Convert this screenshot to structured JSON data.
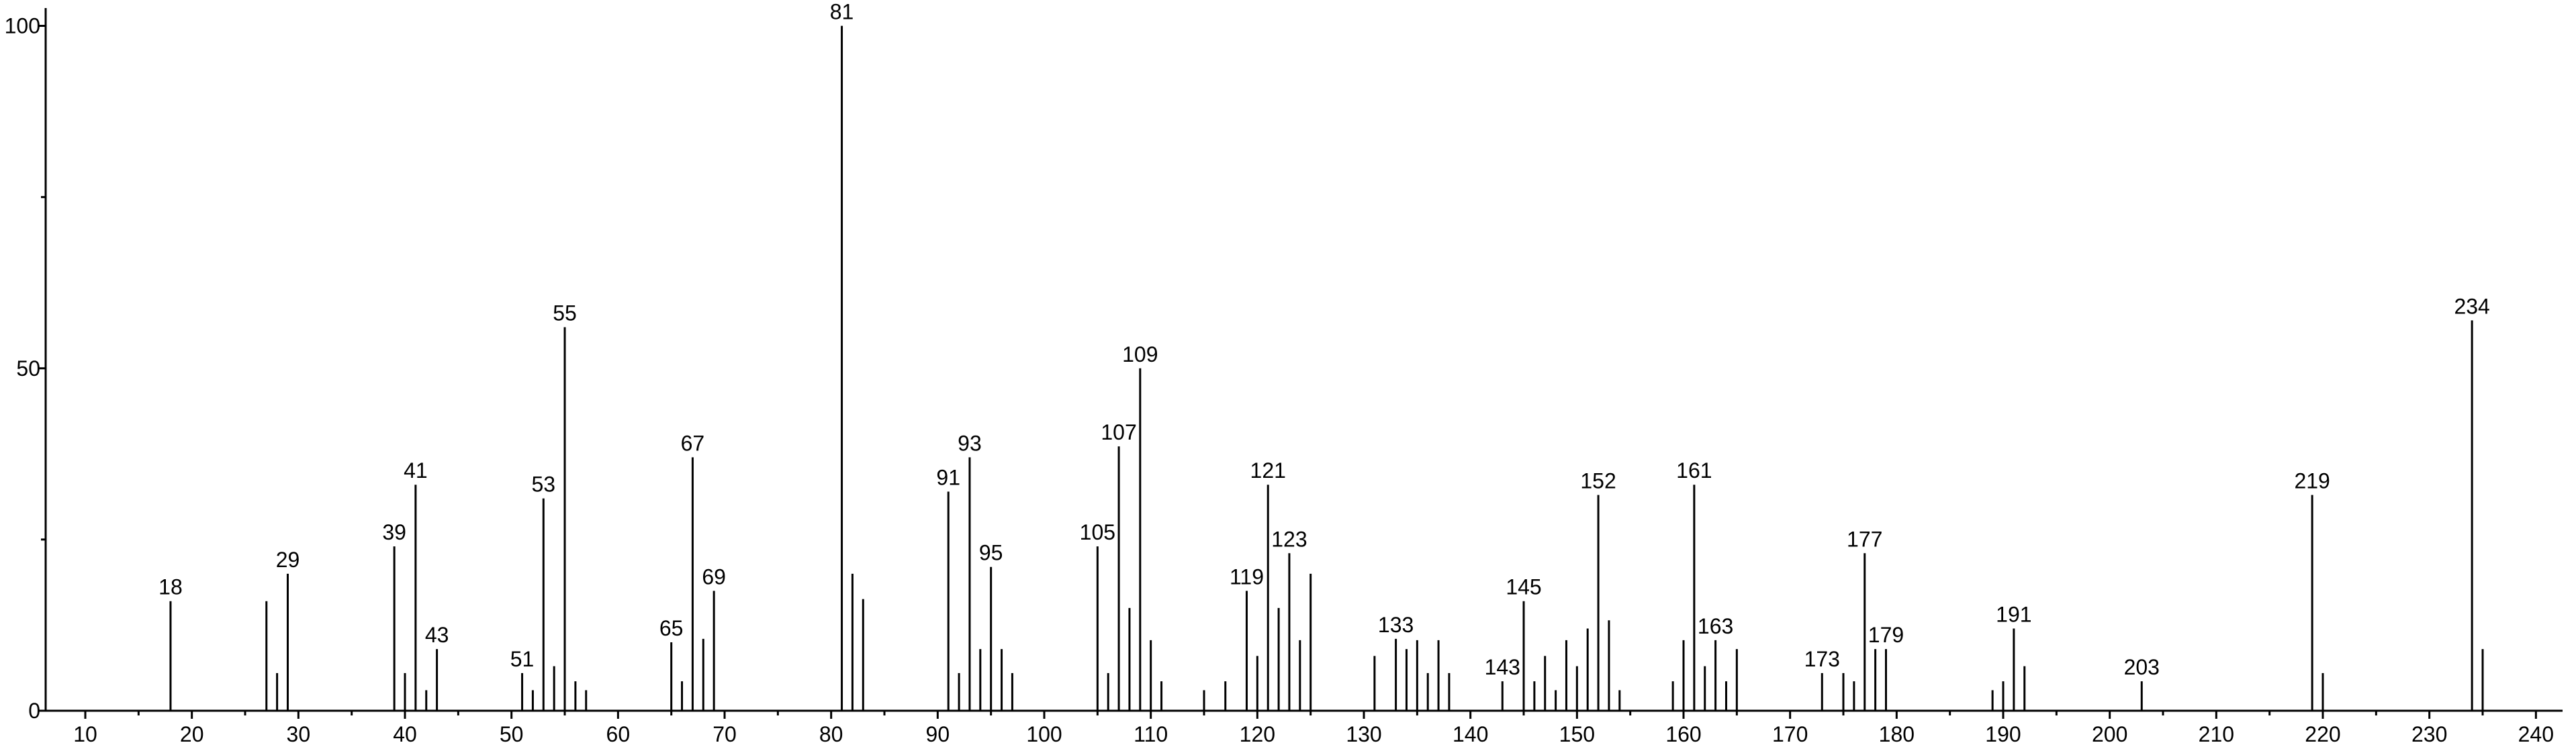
{
  "chart_data": {
    "type": "bar",
    "color": "#000000",
    "x": [
      18,
      27,
      28,
      29,
      39,
      40,
      41,
      42,
      43,
      51,
      52,
      53,
      54,
      55,
      56,
      57,
      65,
      66,
      67,
      68,
      69,
      81,
      82,
      83,
      91,
      92,
      93,
      94,
      95,
      96,
      97,
      105,
      106,
      107,
      108,
      109,
      110,
      111,
      115,
      117,
      119,
      120,
      121,
      122,
      123,
      124,
      125,
      131,
      133,
      134,
      135,
      136,
      137,
      138,
      143,
      145,
      146,
      147,
      148,
      149,
      150,
      151,
      152,
      153,
      154,
      159,
      160,
      161,
      162,
      163,
      164,
      165,
      173,
      175,
      176,
      177,
      178,
      179,
      189,
      190,
      191,
      192,
      203,
      219,
      220,
      234,
      235
    ],
    "values": [
      16,
      16,
      5.5,
      20,
      24,
      5.5,
      33,
      3,
      9,
      5.5,
      3,
      31,
      6.5,
      56,
      4.3,
      3,
      10,
      4.3,
      37,
      10.5,
      17.5,
      100,
      20,
      16.3,
      32,
      5.5,
      37,
      9,
      21,
      9,
      5.5,
      24,
      5.5,
      38.6,
      15,
      50,
      10.3,
      4.3,
      3,
      4.3,
      17.5,
      8,
      33,
      15,
      23,
      10.3,
      20,
      8,
      10.5,
      9,
      10.3,
      5.5,
      10.3,
      5.5,
      4.3,
      16,
      4.3,
      8,
      3,
      10.3,
      6.5,
      12,
      31.5,
      13.2,
      3,
      4.3,
      10.3,
      33,
      6.5,
      10.3,
      4.3,
      9,
      5.5,
      5.5,
      4.3,
      23,
      9,
      9,
      3,
      4.3,
      12,
      6.5,
      4.3,
      31.5,
      5.5,
      57,
      9
    ],
    "peak_labels": [
      18,
      29,
      39,
      41,
      43,
      51,
      53,
      55,
      65,
      67,
      69,
      81,
      91,
      93,
      95,
      105,
      107,
      109,
      119,
      121,
      123,
      133,
      143,
      145,
      152,
      161,
      163,
      173,
      177,
      179,
      191,
      203,
      219,
      234
    ],
    "xlim": [
      6.28,
      242.5
    ],
    "ylim": [
      0,
      102.6
    ],
    "xticks": [
      10,
      20,
      30,
      40,
      50,
      60,
      70,
      80,
      90,
      100,
      110,
      120,
      130,
      140,
      150,
      160,
      170,
      180,
      190,
      200,
      210,
      220,
      230,
      240
    ],
    "xminor_ticks": [
      15,
      25,
      35,
      45,
      55,
      65,
      75,
      85,
      95,
      105,
      115,
      125,
      135,
      145,
      155,
      165,
      175,
      185,
      195,
      205,
      215,
      225,
      235
    ],
    "yticks": [
      0,
      50,
      100
    ],
    "yminor_ticks": [
      25,
      75
    ]
  }
}
